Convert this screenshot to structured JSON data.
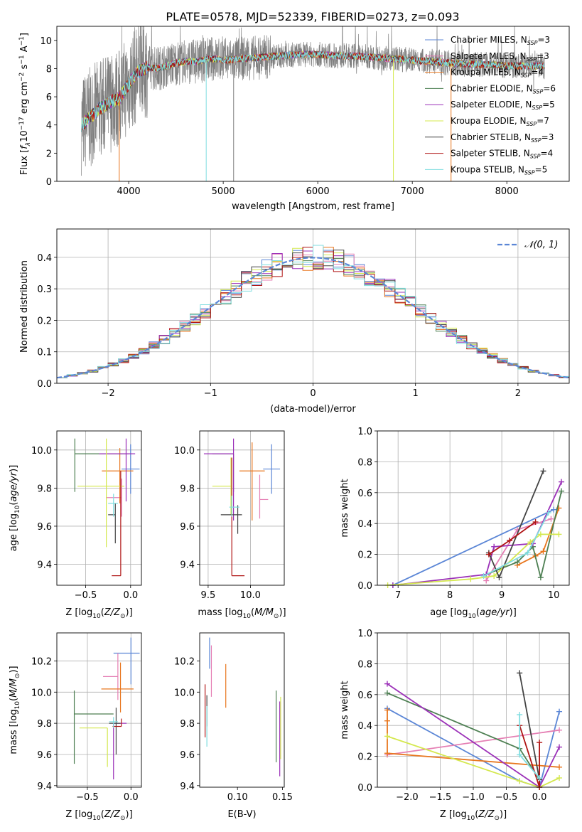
{
  "figure_title": "PLATE=0578, MJD=52339, FIBERID=0273, z=0.093",
  "colors": {
    "Chabrier MILES": "#5b86d6",
    "Salpeter MILES": "#e57fb4",
    "Kroupa MILES": "#e8761e",
    "Chabrier ELODIE": "#4d7f52",
    "Salpeter ELODIE": "#9b30b8",
    "Kroupa ELODIE": "#d4e84e",
    "Chabrier STELIB": "#444444",
    "Salpeter STELIB": "#b01515",
    "Kroupa STELIB": "#7fdde0",
    "gaussian": "#5b86d6",
    "spectrum_data": "#808080",
    "grid": "#b0b0b0"
  },
  "model_names": [
    "Chabrier MILES",
    "Salpeter MILES",
    "Kroupa MILES",
    "Chabrier ELODIE",
    "Salpeter ELODIE",
    "Kroupa ELODIE",
    "Chabrier STELIB",
    "Salpeter STELIB",
    "Kroupa STELIB"
  ],
  "legend1": [
    {
      "name": "Chabrier MILES",
      "text": "Chabrier MILES, N",
      "sub": "SSP",
      "post": "=3"
    },
    {
      "name": "Salpeter MILES",
      "text": "Salpeter MILES, N",
      "sub": "SSP",
      "post": "=3"
    },
    {
      "name": "Kroupa MILES",
      "text": "Kroupa MILES, N",
      "sub": "SSP",
      "post": "=4"
    },
    {
      "name": "Chabrier ELODIE",
      "text": "Chabrier ELODIE, N",
      "sub": "SSP",
      "post": "=6"
    },
    {
      "name": "Salpeter ELODIE",
      "text": "Salpeter ELODIE, N",
      "sub": "SSP",
      "post": "=5"
    },
    {
      "name": "Kroupa ELODIE",
      "text": "Kroupa ELODIE, N",
      "sub": "SSP",
      "post": "=7"
    },
    {
      "name": "Chabrier STELIB",
      "text": "Chabrier STELIB, N",
      "sub": "SSP",
      "post": "=3"
    },
    {
      "name": "Salpeter STELIB",
      "text": "Salpeter STELIB, N",
      "sub": "SSP",
      "post": "=4"
    },
    {
      "name": "Kroupa STELIB",
      "text": "Kroupa STELIB, N",
      "sub": "SSP",
      "post": "=5"
    }
  ],
  "legend2": {
    "label": "𝒩(0, 1)"
  },
  "chart_data": [
    {
      "id": "spectrum",
      "type": "line",
      "xlabel": "wavelength [Angstrom, rest frame]",
      "ylabel": "Flux [f_λ 10^-17 erg cm^-2 s^-1 A^-1]",
      "xlim": [
        3240,
        8660
      ],
      "ylim": [
        0,
        11
      ],
      "xticks": [
        4000,
        5000,
        6000,
        7000,
        8000
      ],
      "yticks": [
        0,
        2,
        4,
        6,
        8,
        10
      ],
      "grid": false,
      "legend": "right",
      "continuum": {
        "x": [
          3500,
          3600,
          3700,
          3800,
          3900,
          4000,
          4100,
          4200,
          4300,
          4400,
          4500,
          4600,
          4700,
          4800,
          4900,
          5000,
          5200,
          5400,
          5600,
          5800,
          6000,
          6200,
          6400,
          6600,
          6800,
          7000,
          7200,
          7400,
          7600,
          7800,
          8000,
          8200,
          8400
        ],
        "y": [
          4.0,
          4.6,
          5.2,
          5.6,
          5.9,
          6.9,
          7.8,
          8.1,
          8.0,
          8.2,
          8.4,
          8.5,
          8.5,
          8.6,
          8.7,
          8.6,
          8.7,
          8.8,
          8.9,
          9.0,
          9.0,
          8.9,
          8.9,
          8.8,
          8.7,
          8.6,
          8.5,
          8.4,
          8.3,
          8.3,
          8.2,
          8.2,
          8.2
        ]
      },
      "data_x_range": [
        3500,
        8400
      ],
      "spikes": [
        {
          "x": 3900,
          "y": 0
        },
        {
          "x": 4820,
          "y": 0
        },
        {
          "x": 5110,
          "y": 0
        },
        {
          "x": 6800,
          "y": 0
        },
        {
          "x": 7410,
          "y": 0
        }
      ]
    },
    {
      "id": "residuals",
      "type": "histogram",
      "xlabel": "(data-model)/error",
      "ylabel": "Normed distribution",
      "xlim": [
        -2.5,
        2.5
      ],
      "ylim": [
        0,
        0.49
      ],
      "xticks": [
        -2,
        -1,
        0,
        1,
        2
      ],
      "yticks": [
        0.0,
        0.1,
        0.2,
        0.3,
        0.4
      ],
      "grid": true,
      "bin_width": 0.1,
      "bin_start": -2.5,
      "gaussian": {
        "mean": 0,
        "sigma": 1,
        "label": "𝒩(0, 1)"
      },
      "legend": "top-right"
    },
    {
      "id": "age_vs_Z",
      "type": "errorbar",
      "xlabel": "Z [log10(Z/Z☉)]",
      "ylabel": "age  [log10(age/yr)]",
      "xlim": [
        -0.82,
        0.12
      ],
      "ylim": [
        9.29,
        10.1
      ],
      "xticks": [
        -0.5,
        0.0
      ],
      "yticks": [
        9.4,
        9.6,
        9.8,
        10.0
      ],
      "grid": true,
      "points": [
        {
          "model": "Chabrier MILES",
          "x": 0.0,
          "y": 9.9,
          "xerr": [
            0.1,
            0.1
          ],
          "yerr": [
            0.13,
            0.13
          ]
        },
        {
          "model": "Salpeter MILES",
          "x": -0.1,
          "y": 9.75,
          "xerr": [
            0.17,
            0.0
          ],
          "yerr": [
            0.1,
            0.1
          ]
        },
        {
          "model": "Kroupa MILES",
          "x": -0.12,
          "y": 9.89,
          "xerr": [
            0.2,
            0.15
          ],
          "yerr": [
            0.17,
            0.12
          ]
        },
        {
          "model": "Chabrier ELODIE",
          "x": -0.62,
          "y": 9.98,
          "xerr": [
            0.0,
            0.6
          ],
          "yerr": [
            0.2,
            0.08
          ]
        },
        {
          "model": "Salpeter ELODIE",
          "x": -0.05,
          "y": 9.98,
          "xerr": [
            0.3,
            0.1
          ],
          "yerr": [
            0.25,
            0.08
          ]
        },
        {
          "model": "Kroupa ELODIE",
          "x": -0.27,
          "y": 9.81,
          "xerr": [
            0.32,
            0.2
          ],
          "yerr": [
            0.32,
            0.25
          ]
        },
        {
          "model": "Chabrier STELIB",
          "x": -0.17,
          "y": 9.66,
          "xerr": [
            0.08,
            0.0
          ],
          "yerr": [
            0.15,
            0.06
          ]
        },
        {
          "model": "Salpeter STELIB",
          "x": -0.11,
          "y": 9.34,
          "xerr": [
            0.1,
            0.0
          ],
          "yerr": [
            0.0,
            0.55
          ]
        },
        {
          "model": "Kroupa STELIB",
          "x": -0.19,
          "y": 9.72,
          "xerr": [
            0.06,
            0.05
          ],
          "yerr": [
            0.07,
            0.05
          ]
        }
      ]
    },
    {
      "id": "age_vs_mass",
      "type": "errorbar",
      "xlabel": "mass [log10(M/M☉)]",
      "ylabel": "",
      "xlim": [
        9.4,
        10.4
      ],
      "ylim": [
        9.29,
        10.1
      ],
      "xticks": [
        9.5,
        10.0
      ],
      "yticks": [
        9.4,
        9.6,
        9.8,
        10.0
      ],
      "grid": true,
      "points": [
        {
          "model": "Chabrier MILES",
          "x": 10.25,
          "y": 9.9,
          "xerr": [
            0.1,
            0.1
          ],
          "yerr": [
            0.13,
            0.13
          ]
        },
        {
          "model": "Salpeter MILES",
          "x": 10.11,
          "y": 9.74,
          "xerr": [
            0.0,
            0.1
          ],
          "yerr": [
            0.1,
            0.13
          ]
        },
        {
          "model": "Kroupa MILES",
          "x": 10.02,
          "y": 9.89,
          "xerr": [
            0.15,
            0.15
          ],
          "yerr": [
            0.26,
            0.15
          ]
        },
        {
          "model": "Chabrier ELODIE",
          "x": 9.8,
          "y": 9.98,
          "xerr": [
            0.25,
            0.0
          ],
          "yerr": [
            0.2,
            0.0
          ]
        },
        {
          "model": "Salpeter ELODIE",
          "x": 9.8,
          "y": 9.98,
          "xerr": [
            0.35,
            0.0
          ],
          "yerr": [
            0.35,
            0.08
          ]
        },
        {
          "model": "Kroupa ELODIE",
          "x": 9.77,
          "y": 9.81,
          "xerr": [
            0.22,
            0.0
          ],
          "yerr": [
            0.15,
            0.15
          ]
        },
        {
          "model": "Chabrier STELIB",
          "x": 9.85,
          "y": 9.66,
          "xerr": [
            0.2,
            0.05
          ],
          "yerr": [
            0.1,
            0.05
          ]
        },
        {
          "model": "Salpeter STELIB",
          "x": 9.78,
          "y": 9.34,
          "xerr": [
            0.0,
            0.15
          ],
          "yerr": [
            0.0,
            0.62
          ]
        },
        {
          "model": "Kroupa STELIB",
          "x": 9.78,
          "y": 9.7,
          "xerr": [
            0.03,
            0.09
          ],
          "yerr": [
            0.05,
            0.06
          ]
        }
      ]
    },
    {
      "id": "weight_vs_age",
      "type": "line",
      "xlabel": "age  [log10(age/yr)]",
      "ylabel": "mass weight",
      "xlim": [
        6.6,
        10.3
      ],
      "ylim": [
        0,
        1.0
      ],
      "xticks": [
        7,
        8,
        9,
        10
      ],
      "yticks": [
        0.0,
        0.2,
        0.4,
        0.6,
        0.8,
        1.0
      ],
      "grid": true,
      "series": [
        {
          "model": "Chabrier MILES",
          "x": [
            6.9,
            10.0
          ],
          "y": [
            0.0,
            0.49
          ]
        },
        {
          "model": "Salpeter MILES",
          "x": [
            8.7,
            9.3,
            9.95
          ],
          "y": [
            0.03,
            0.36,
            0.43
          ]
        },
        {
          "model": "Kroupa MILES",
          "x": [
            9.3,
            9.65,
            9.8,
            10.1
          ],
          "y": [
            0.13,
            0.19,
            0.22,
            0.5
          ]
        },
        {
          "model": "Chabrier ELODIE",
          "x": [
            8.7,
            9.3,
            9.6,
            9.75,
            10.15
          ],
          "y": [
            0.07,
            0.15,
            0.25,
            0.05,
            0.61
          ]
        },
        {
          "model": "Salpeter ELODIE",
          "x": [
            6.9,
            8.7,
            8.85,
            9.6,
            10.15
          ],
          "y": [
            0.0,
            0.07,
            0.25,
            0.27,
            0.67
          ]
        },
        {
          "model": "Kroupa ELODIE",
          "x": [
            6.8,
            8.4,
            8.85,
            9.55,
            9.75,
            10.1
          ],
          "y": [
            0.0,
            0.04,
            0.06,
            0.28,
            0.33,
            0.33
          ]
        },
        {
          "model": "Chabrier STELIB",
          "x": [
            8.75,
            8.95,
            9.8
          ],
          "y": [
            0.21,
            0.05,
            0.74
          ]
        },
        {
          "model": "Salpeter STELIB",
          "x": [
            8.75,
            9.15,
            9.65
          ],
          "y": [
            0.2,
            0.29,
            0.41
          ]
        },
        {
          "model": "Kroupa STELIB",
          "x": [
            8.65,
            9.5,
            9.9
          ],
          "y": [
            0.06,
            0.21,
            0.47
          ]
        }
      ]
    },
    {
      "id": "mass_vs_Z",
      "type": "errorbar",
      "xlabel": "Z [log10(Z/Z☉)]",
      "ylabel": "mass [log10(M/M☉)]",
      "xlim": [
        -0.85,
        0.12
      ],
      "ylim": [
        9.39,
        10.38
      ],
      "xticks": [
        -0.5,
        0.0
      ],
      "yticks": [
        9.4,
        9.6,
        9.8,
        10.0,
        10.2
      ],
      "grid": true,
      "points": [
        {
          "model": "Chabrier MILES",
          "x": 0.0,
          "y": 10.25,
          "xerr": [
            0.2,
            0.1
          ],
          "yerr": [
            0.2,
            0.1
          ]
        },
        {
          "model": "Salpeter MILES",
          "x": -0.15,
          "y": 10.1,
          "xerr": [
            0.17,
            0.0
          ],
          "yerr": [
            0.15,
            0.15
          ]
        },
        {
          "model": "Kroupa MILES",
          "x": -0.12,
          "y": 10.02,
          "xerr": [
            0.22,
            0.15
          ],
          "yerr": [
            0.15,
            0.17
          ]
        },
        {
          "model": "Chabrier ELODIE",
          "x": -0.65,
          "y": 9.86,
          "xerr": [
            0.0,
            0.45
          ],
          "yerr": [
            0.32,
            0.15
          ]
        },
        {
          "model": "Salpeter ELODIE",
          "x": -0.2,
          "y": 9.8,
          "xerr": [
            0.0,
            0.15
          ],
          "yerr": [
            0.36,
            0.0
          ]
        },
        {
          "model": "Kroupa ELODIE",
          "x": -0.27,
          "y": 9.77,
          "xerr": [
            0.32,
            0.0
          ],
          "yerr": [
            0.25,
            0.0
          ]
        },
        {
          "model": "Chabrier STELIB",
          "x": -0.17,
          "y": 9.8,
          "xerr": [
            0.08,
            0.05
          ],
          "yerr": [
            0.2,
            0.1
          ]
        },
        {
          "model": "Salpeter STELIB",
          "x": -0.11,
          "y": 9.78,
          "xerr": [
            0.1,
            0.0
          ],
          "yerr": [
            0.0,
            0.05
          ]
        },
        {
          "model": "Kroupa STELIB",
          "x": -0.2,
          "y": 9.81,
          "xerr": [
            0.05,
            0.05
          ],
          "yerr": [
            0.04,
            0.03
          ]
        }
      ]
    },
    {
      "id": "mass_vs_ebv",
      "type": "errorbar",
      "xlabel": "E(B-V)",
      "ylabel": "",
      "xlim": [
        0.058,
        0.152
      ],
      "ylim": [
        9.39,
        10.38
      ],
      "xticks": [
        0.1,
        0.15
      ],
      "yticks": [
        9.4,
        9.6,
        9.8,
        10.0,
        10.2
      ],
      "grid": false,
      "points": [
        {
          "model": "Chabrier MILES",
          "x": 0.069,
          "y": 10.25,
          "xerr": [
            0,
            0
          ],
          "yerr": [
            0.1,
            0.1
          ]
        },
        {
          "model": "Salpeter MILES",
          "x": 0.071,
          "y": 10.1,
          "xerr": [
            0,
            0
          ],
          "yerr": [
            0.13,
            0.2
          ]
        },
        {
          "model": "Kroupa MILES",
          "x": 0.087,
          "y": 10.04,
          "xerr": [
            0,
            0
          ],
          "yerr": [
            0.14,
            0.14
          ]
        },
        {
          "model": "Chabrier ELODIE",
          "x": 0.143,
          "y": 9.78,
          "xerr": [
            0,
            0
          ],
          "yerr": [
            0.23,
            0.23
          ]
        },
        {
          "model": "Salpeter ELODIE",
          "x": 0.147,
          "y": 9.7,
          "xerr": [
            0,
            0
          ],
          "yerr": [
            0.24,
            0.24
          ]
        },
        {
          "model": "Kroupa ELODIE",
          "x": 0.148,
          "y": 9.77,
          "xerr": [
            0,
            0
          ],
          "yerr": [
            0.2,
            0.2
          ]
        },
        {
          "model": "Chabrier STELIB",
          "x": 0.066,
          "y": 9.88,
          "xerr": [
            0,
            0
          ],
          "yerr": [
            0.1,
            0.1
          ]
        },
        {
          "model": "Salpeter STELIB",
          "x": 0.064,
          "y": 9.88,
          "xerr": [
            0,
            0
          ],
          "yerr": [
            0.17,
            0.17
          ]
        },
        {
          "model": "Kroupa STELIB",
          "x": 0.066,
          "y": 9.78,
          "xerr": [
            0,
            0
          ],
          "yerr": [
            0.13,
            0.13
          ]
        }
      ]
    },
    {
      "id": "weight_vs_Z",
      "type": "line",
      "xlabel": "Z [log10(Z/Z☉)]",
      "ylabel": "mass weight",
      "xlim": [
        -2.45,
        0.45
      ],
      "ylim": [
        0,
        1.0
      ],
      "xticks": [
        -2.0,
        -1.5,
        -1.0,
        -0.5,
        0.0
      ],
      "yticks": [
        0.0,
        0.2,
        0.4,
        0.6,
        0.8,
        1.0
      ],
      "grid": true,
      "series": [
        {
          "model": "Chabrier MILES",
          "x": [
            -2.3,
            -0.3,
            0.0,
            0.3
          ],
          "y": [
            0.51,
            0.04,
            0.0,
            0.49
          ]
        },
        {
          "model": "Salpeter MILES",
          "x": [
            -2.3,
            0.3
          ],
          "y": [
            0.21,
            0.37
          ]
        },
        {
          "model": "Kroupa MILES",
          "x": [
            -2.3,
            -2.3,
            -2.3,
            0.3
          ],
          "y": [
            0.5,
            0.43,
            0.22,
            0.13
          ]
        },
        {
          "model": "Chabrier ELODIE",
          "x": [
            -2.3,
            -0.3,
            0.0
          ],
          "y": [
            0.61,
            0.25,
            0.05
          ]
        },
        {
          "model": "Salpeter ELODIE",
          "x": [
            -2.3,
            0.0,
            0.3
          ],
          "y": [
            0.67,
            0.0,
            0.26
          ]
        },
        {
          "model": "Kroupa ELODIE",
          "x": [
            -2.3,
            -0.3,
            0.0,
            0.3
          ],
          "y": [
            0.33,
            0.04,
            0.0,
            0.06
          ]
        },
        {
          "model": "Chabrier STELIB",
          "x": [
            -0.3,
            0.0
          ],
          "y": [
            0.74,
            0.05
          ]
        },
        {
          "model": "Salpeter STELIB",
          "x": [
            -0.3,
            0.0,
            0.0
          ],
          "y": [
            0.4,
            0.0,
            0.29
          ]
        },
        {
          "model": "Kroupa STELIB",
          "x": [
            -0.3,
            -0.3,
            0.0
          ],
          "y": [
            0.47,
            0.21,
            0.06
          ]
        }
      ]
    }
  ]
}
